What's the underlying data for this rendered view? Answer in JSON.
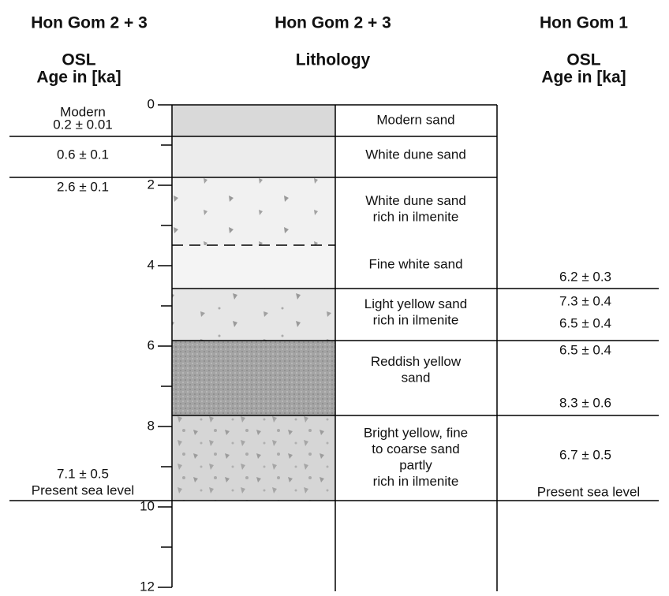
{
  "columns": [
    {
      "title": "Hon Gom 2 + 3",
      "heading": [
        "OSL",
        "Age in [ka]"
      ]
    },
    {
      "title": "Hon Gom 2 + 3",
      "heading": [
        "Lithology"
      ]
    },
    {
      "title": "Hon Gom 1",
      "heading": [
        "OSL",
        "Age in [ka]"
      ]
    }
  ],
  "depth_ticks": [
    0,
    2,
    4,
    6,
    8,
    10,
    12
  ],
  "layers": [
    {
      "description": [
        "Modern sand"
      ]
    },
    {
      "description": [
        "White dune sand"
      ]
    },
    {
      "description": [
        "White dune sand",
        "rich in ilmenite"
      ]
    },
    {
      "description": [
        "Fine white sand"
      ]
    },
    {
      "description": [
        "Light yellow sand",
        "rich in ilmenite"
      ]
    },
    {
      "description": [
        "Reddish yellow",
        "sand"
      ]
    },
    {
      "description": [
        "Bright yellow, fine",
        "to coarse sand",
        "partly",
        "rich in ilmenite"
      ]
    }
  ],
  "left_ages": [
    "Modern",
    "0.2 ± 0.01",
    "0.6 ± 0.1",
    "2.6 ± 0.1",
    "7.1 ± 0.5",
    "Present sea level"
  ],
  "right_ages": [
    "6.2 ± 0.3",
    "7.3 ± 0.4",
    "6.5 ± 0.4",
    "6.5 ± 0.4",
    "8.3 ± 0.6",
    "6.7 ± 0.5",
    "Present sea level"
  ]
}
